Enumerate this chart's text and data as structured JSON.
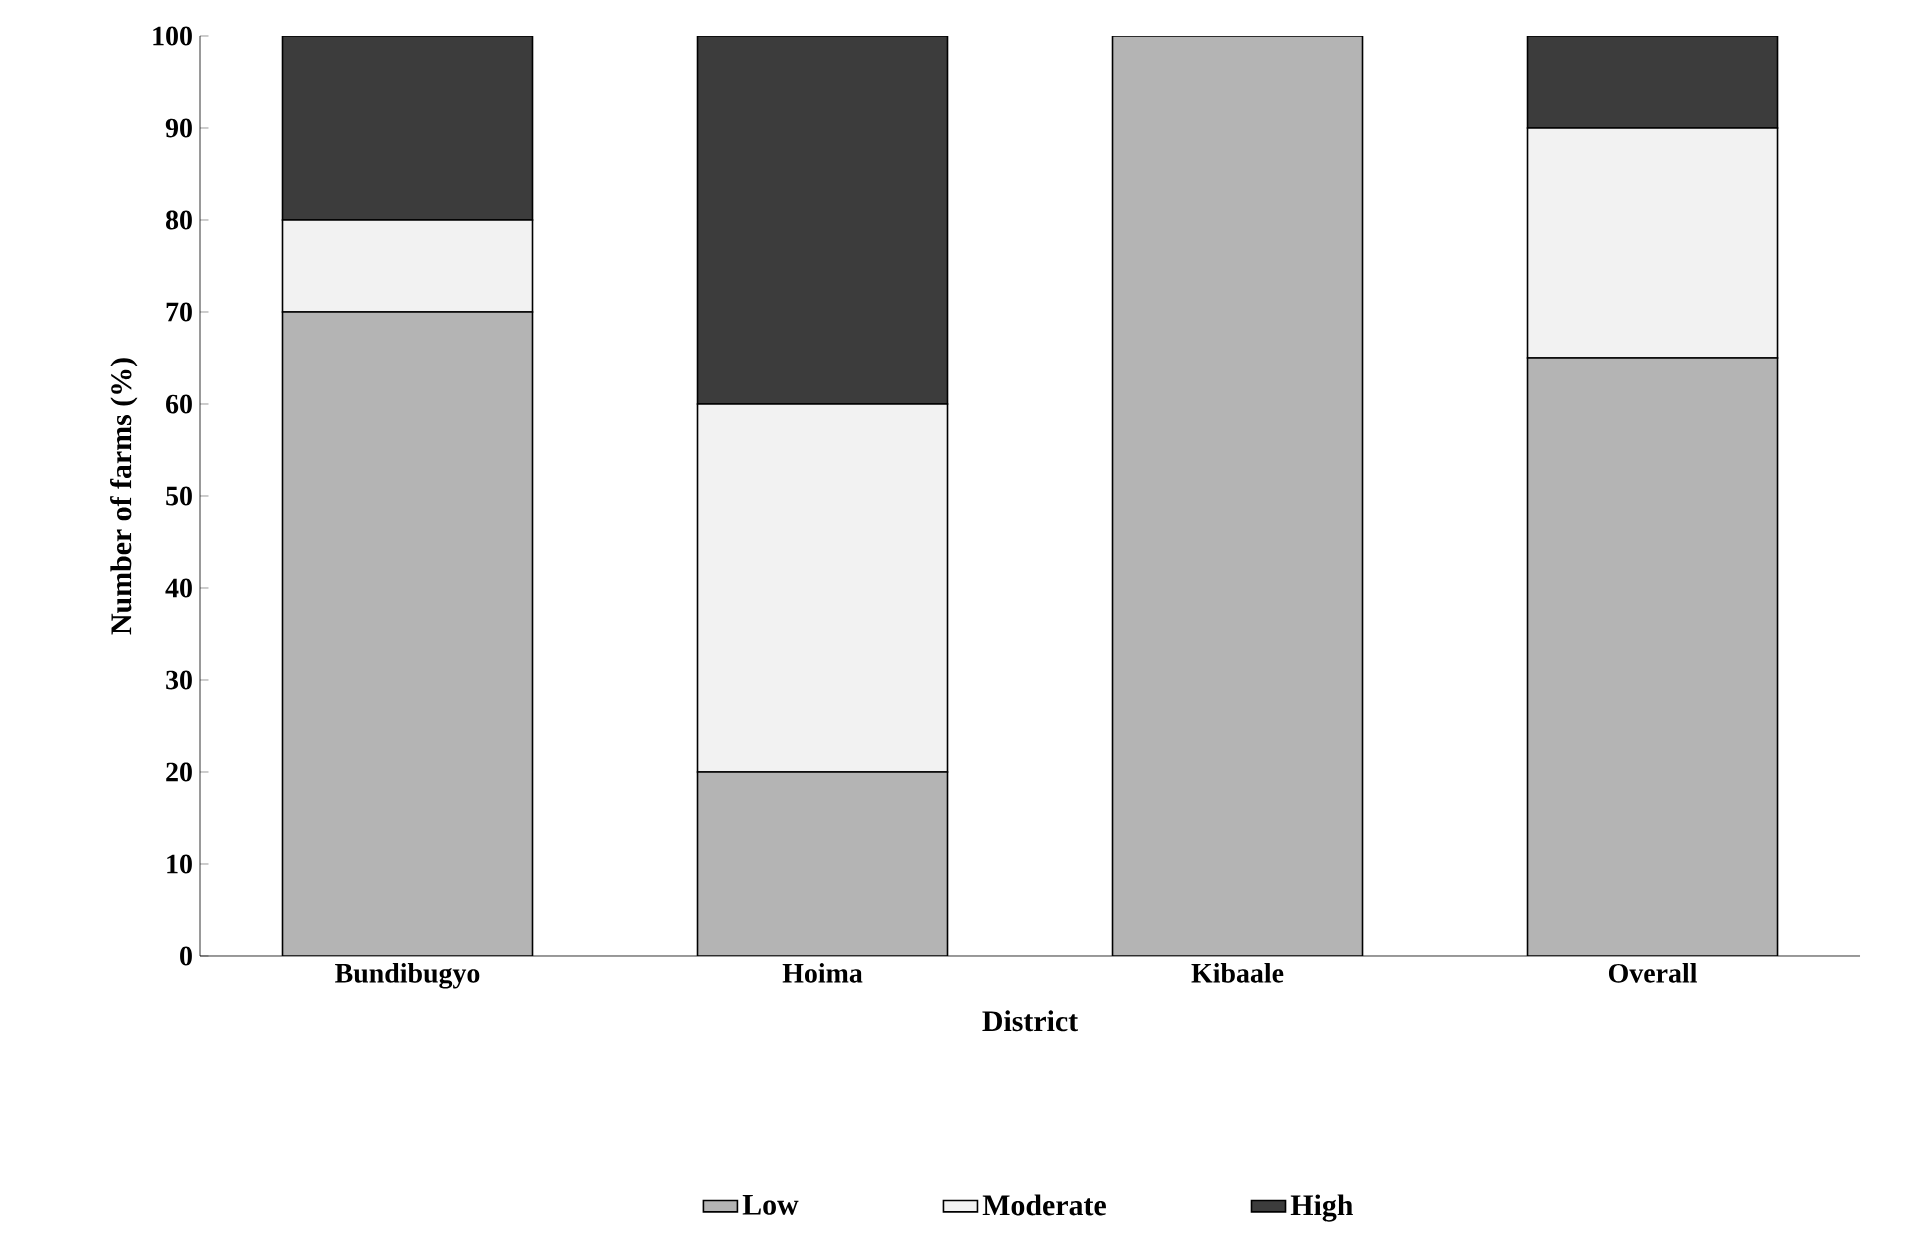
{
  "chart_data": {
    "type": "bar",
    "stacked": true,
    "xlabel": "District",
    "ylabel": "Number of farms (%)",
    "categories": [
      "Bundibugyo",
      "Hoima",
      "Kibaale",
      "Overall"
    ],
    "series": [
      {
        "name": "Low",
        "color": "#b4b4b4",
        "values": [
          70,
          20,
          100,
          65
        ]
      },
      {
        "name": "Moderate",
        "color": "#f2f2f2",
        "values": [
          10,
          40,
          0,
          25
        ]
      },
      {
        "name": "High",
        "color": "#3c3c3c",
        "values": [
          20,
          40,
          0,
          10
        ]
      }
    ],
    "ylim": [
      0,
      100
    ],
    "yticks": [
      0,
      10,
      20,
      30,
      40,
      50,
      60,
      70,
      80,
      90,
      100
    ],
    "grid": false,
    "legend": "bottom"
  }
}
